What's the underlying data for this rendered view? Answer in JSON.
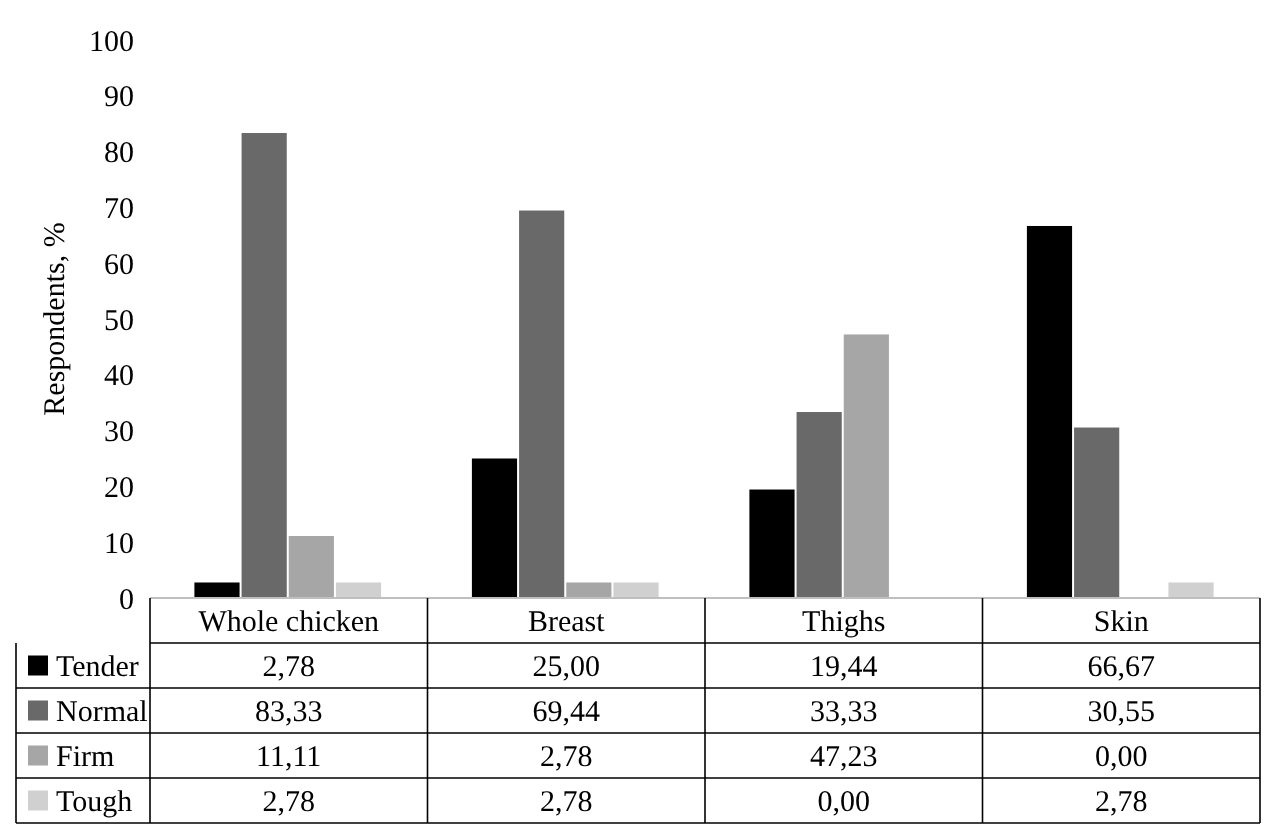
{
  "chart_data": {
    "type": "bar",
    "ylabel": "Respondents, %",
    "categories": [
      "Whole chicken",
      "Breast",
      "Thighs",
      "Skin"
    ],
    "series": [
      {
        "name": "Tender",
        "color": "#000000",
        "values": [
          2.78,
          25.0,
          19.44,
          66.67
        ],
        "value_labels": [
          "2,78",
          "25,00",
          "19,44",
          "66,67"
        ]
      },
      {
        "name": "Normal",
        "color": "#696969",
        "values": [
          83.33,
          69.44,
          33.33,
          30.55
        ],
        "value_labels": [
          "83,33",
          "69,44",
          "33,33",
          "30,55"
        ]
      },
      {
        "name": "Firm",
        "color": "#a6a6a6",
        "values": [
          11.11,
          2.78,
          47.23,
          0.0
        ],
        "value_labels": [
          "11,11",
          "2,78",
          "47,23",
          "0,00"
        ]
      },
      {
        "name": "Tough",
        "color": "#d0d0d0",
        "values": [
          2.78,
          2.78,
          0.0,
          2.78
        ],
        "value_labels": [
          "2,78",
          "2,78",
          "0,00",
          "2,78"
        ]
      }
    ],
    "ylim": [
      0,
      100
    ],
    "yticks": [
      0,
      10,
      20,
      30,
      40,
      50,
      60,
      70,
      80,
      90,
      100
    ],
    "grid": false,
    "legend": "bottom left"
  }
}
